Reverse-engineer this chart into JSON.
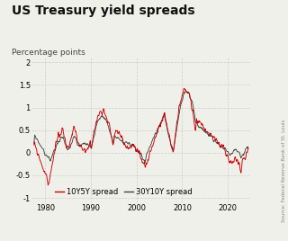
{
  "title": "US Treasury yield spreads",
  "subtitle": "Percentage points",
  "source_text": "Source: Federal Reserve Bank of St. Louis",
  "xlim": [
    1977,
    2025
  ],
  "ylim": [
    -1.1,
    2.1
  ],
  "yticks": [
    -1,
    -0.5,
    0,
    0.5,
    1,
    1.5,
    2
  ],
  "xticks": [
    1980,
    1990,
    2000,
    2010,
    2020
  ],
  "color_10y5y": "#cc0000",
  "color_30y10y": "#444444",
  "legend_entries": [
    "10Y5Y spread",
    "30Y10Y spread"
  ],
  "background_color": "#f0f0eb",
  "grid_color": "#cccccc",
  "title_fontsize": 10,
  "subtitle_fontsize": 6.5,
  "tick_fontsize": 6,
  "legend_fontsize": 6
}
